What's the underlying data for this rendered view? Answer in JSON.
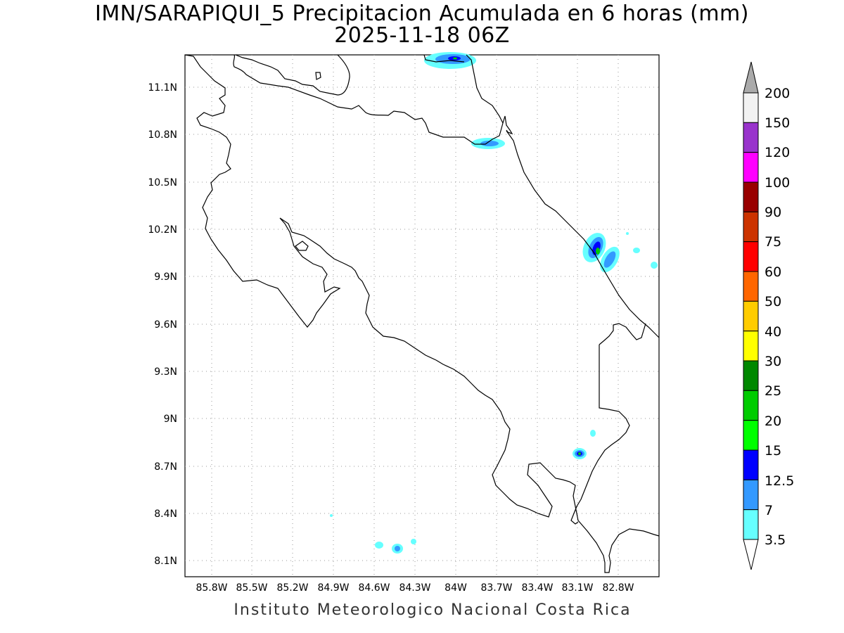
{
  "title": "IMN/SARAPIQUI_5 Precipitacion Acumulada en 6 horas (mm)",
  "subtitle": "2025-11-18 06Z",
  "footer": "Instituto Meteorologico Nacional Costa Rica",
  "axes": {
    "lon_labels": [
      "85.8W",
      "85.5W",
      "85.2W",
      "84.9W",
      "84.6W",
      "84.3W",
      "84W",
      "83.7W",
      "83.4W",
      "83.1W",
      "82.8W"
    ],
    "lat_labels": [
      "11.1N",
      "10.8N",
      "10.5N",
      "10.2N",
      "9.9N",
      "9.6N",
      "9.3N",
      "9N",
      "8.7N",
      "8.4N",
      "8.1N"
    ]
  },
  "colorbar": {
    "labels": [
      "200",
      "150",
      "120",
      "100",
      "90",
      "75",
      "60",
      "50",
      "40",
      "30",
      "25",
      "20",
      "15",
      "12.5",
      "7",
      "3.5"
    ],
    "colors": [
      "#f2f2f2",
      "#9933cc",
      "#ff00ff",
      "#990000",
      "#cc3300",
      "#ff0000",
      "#ff6600",
      "#ffcc00",
      "#ffff00",
      "#008800",
      "#00cc00",
      "#00ff00",
      "#0000ff",
      "#3399ff",
      "#66ffff"
    ],
    "above_color": "#aaaaaa"
  }
}
